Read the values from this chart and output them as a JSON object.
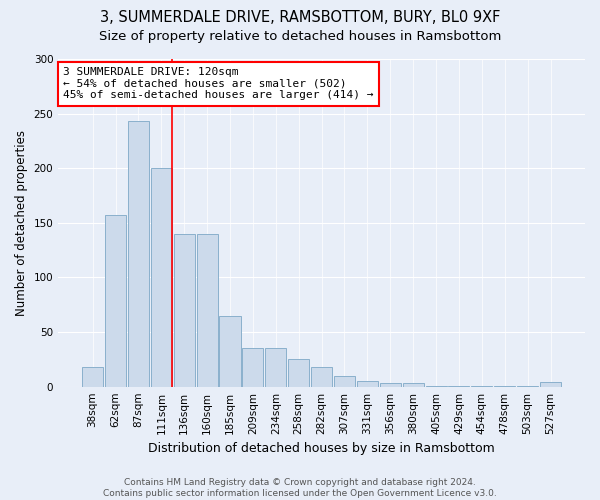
{
  "title_line1": "3, SUMMERDALE DRIVE, RAMSBOTTOM, BURY, BL0 9XF",
  "title_line2": "Size of property relative to detached houses in Ramsbottom",
  "xlabel": "Distribution of detached houses by size in Ramsbottom",
  "ylabel": "Number of detached properties",
  "categories": [
    "38sqm",
    "62sqm",
    "87sqm",
    "111sqm",
    "136sqm",
    "160sqm",
    "185sqm",
    "209sqm",
    "234sqm",
    "258sqm",
    "282sqm",
    "307sqm",
    "331sqm",
    "356sqm",
    "380sqm",
    "405sqm",
    "429sqm",
    "454sqm",
    "478sqm",
    "503sqm",
    "527sqm"
  ],
  "values": [
    18,
    157,
    243,
    200,
    140,
    140,
    65,
    35,
    35,
    25,
    18,
    10,
    5,
    3,
    3,
    1,
    1,
    1,
    1,
    1,
    4
  ],
  "bar_color": "#ccdaeb",
  "bar_edgecolor": "#8ab0cc",
  "annotation_text": "3 SUMMERDALE DRIVE: 120sqm\n← 54% of detached houses are smaller (502)\n45% of semi-detached houses are larger (414) →",
  "annotation_box_facecolor": "white",
  "annotation_box_edgecolor": "red",
  "vline_color": "red",
  "vline_x_index": 3,
  "ylim": [
    0,
    300
  ],
  "yticks": [
    0,
    50,
    100,
    150,
    200,
    250,
    300
  ],
  "footnote": "Contains HM Land Registry data © Crown copyright and database right 2024.\nContains public sector information licensed under the Open Government Licence v3.0.",
  "bg_color": "#e8eef8",
  "plot_bg_color": "#e8eef8",
  "title_fontsize": 10.5,
  "subtitle_fontsize": 9.5,
  "xlabel_fontsize": 9,
  "ylabel_fontsize": 8.5,
  "tick_fontsize": 7.5,
  "annot_fontsize": 8,
  "footnote_fontsize": 6.5
}
